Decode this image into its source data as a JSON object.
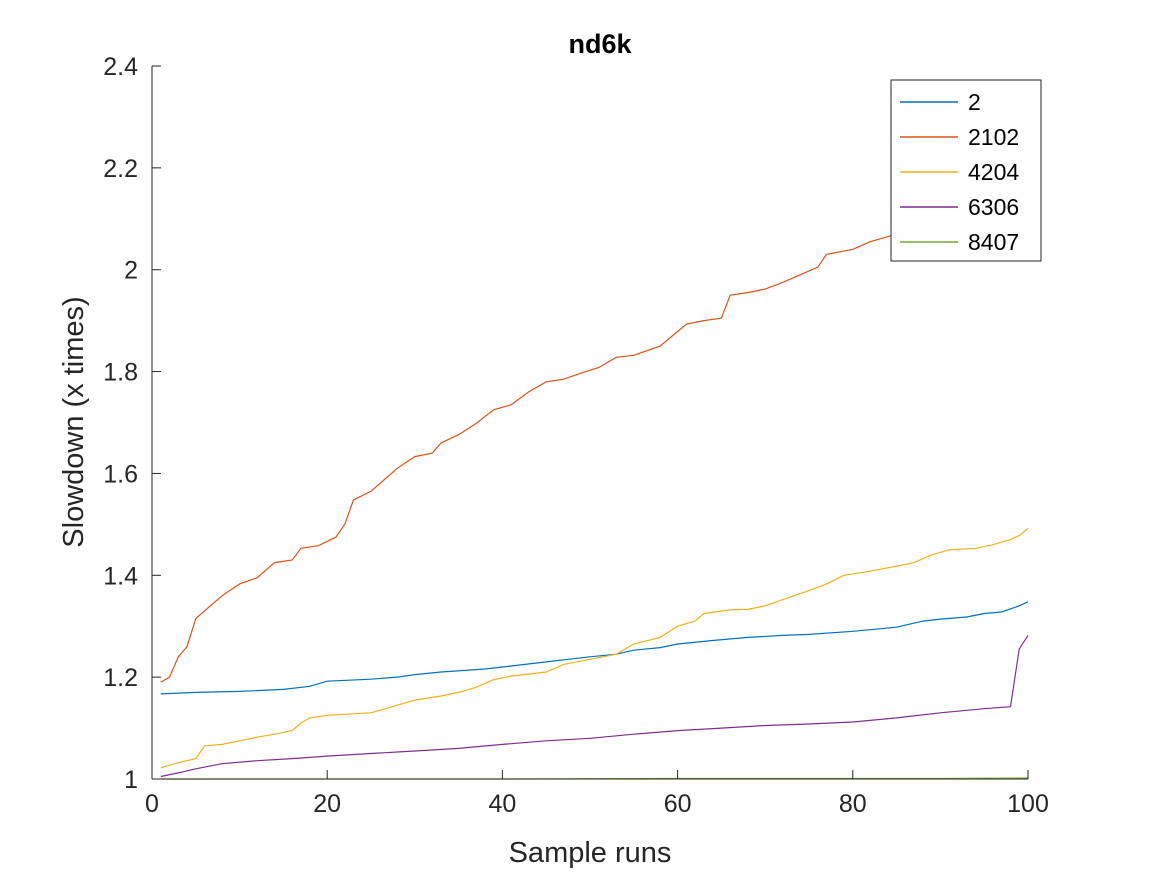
{
  "chart_data": {
    "type": "line",
    "title": "nd6k",
    "xlabel": "Sample runs",
    "ylabel": "Slowdown (x times)",
    "xlim": [
      0,
      100
    ],
    "ylim": [
      1,
      2.4
    ],
    "xticks": [
      0,
      20,
      40,
      60,
      80,
      100
    ],
    "yticks": [
      1,
      1.2,
      1.4,
      1.6,
      1.8,
      2,
      2.2,
      2.4
    ],
    "xtick_labels": [
      "0",
      "20",
      "40",
      "60",
      "80",
      "100"
    ],
    "ytick_labels": [
      "1",
      "1.2",
      "1.4",
      "1.6",
      "1.8",
      "2",
      "2.2",
      "2.4"
    ],
    "grid": false,
    "legend_position": "top-right",
    "series": [
      {
        "name": "2",
        "color": "#0072BD",
        "points": [
          [
            1,
            1.167
          ],
          [
            5,
            1.17
          ],
          [
            10,
            1.172
          ],
          [
            15,
            1.176
          ],
          [
            18,
            1.182
          ],
          [
            20,
            1.192
          ],
          [
            25,
            1.196
          ],
          [
            28,
            1.2
          ],
          [
            30,
            1.205
          ],
          [
            33,
            1.21
          ],
          [
            38,
            1.216
          ],
          [
            40,
            1.22
          ],
          [
            45,
            1.23
          ],
          [
            48,
            1.236
          ],
          [
            50,
            1.24
          ],
          [
            53,
            1.245
          ],
          [
            55,
            1.253
          ],
          [
            58,
            1.258
          ],
          [
            60,
            1.265
          ],
          [
            64,
            1.272
          ],
          [
            68,
            1.278
          ],
          [
            72,
            1.282
          ],
          [
            75,
            1.284
          ],
          [
            80,
            1.29
          ],
          [
            85,
            1.298
          ],
          [
            88,
            1.31
          ],
          [
            90,
            1.314
          ],
          [
            93,
            1.318
          ],
          [
            95,
            1.325
          ],
          [
            97,
            1.328
          ],
          [
            99,
            1.34
          ],
          [
            100,
            1.348
          ]
        ]
      },
      {
        "name": "2102",
        "color": "#D95319",
        "points": [
          [
            1,
            1.19
          ],
          [
            2,
            1.2
          ],
          [
            3,
            1.24
          ],
          [
            4,
            1.26
          ],
          [
            5,
            1.315
          ],
          [
            7,
            1.345
          ],
          [
            8,
            1.36
          ],
          [
            10,
            1.383
          ],
          [
            12,
            1.395
          ],
          [
            14,
            1.425
          ],
          [
            16,
            1.43
          ],
          [
            17,
            1.453
          ],
          [
            19,
            1.458
          ],
          [
            21,
            1.475
          ],
          [
            22,
            1.5
          ],
          [
            23,
            1.548
          ],
          [
            25,
            1.565
          ],
          [
            28,
            1.61
          ],
          [
            30,
            1.633
          ],
          [
            32,
            1.64
          ],
          [
            33,
            1.66
          ],
          [
            35,
            1.676
          ],
          [
            37,
            1.698
          ],
          [
            39,
            1.725
          ],
          [
            41,
            1.735
          ],
          [
            43,
            1.76
          ],
          [
            45,
            1.78
          ],
          [
            47,
            1.785
          ],
          [
            49,
            1.797
          ],
          [
            51,
            1.808
          ],
          [
            53,
            1.828
          ],
          [
            55,
            1.832
          ],
          [
            58,
            1.85
          ],
          [
            61,
            1.893
          ],
          [
            63,
            1.9
          ],
          [
            65,
            1.905
          ],
          [
            66,
            1.95
          ],
          [
            68,
            1.955
          ],
          [
            70,
            1.962
          ],
          [
            72,
            1.975
          ],
          [
            74,
            1.99
          ],
          [
            76,
            2.005
          ],
          [
            77,
            2.03
          ],
          [
            80,
            2.04
          ],
          [
            82,
            2.055
          ],
          [
            85,
            2.07
          ],
          [
            88,
            2.09
          ],
          [
            90,
            2.11
          ],
          [
            92,
            2.13
          ],
          [
            94,
            2.15
          ],
          [
            96,
            2.17
          ],
          [
            98,
            2.195
          ],
          [
            99,
            2.225
          ],
          [
            100,
            2.232
          ]
        ]
      },
      {
        "name": "4204",
        "color": "#EDB120",
        "points": [
          [
            1,
            1.022
          ],
          [
            3,
            1.032
          ],
          [
            5,
            1.04
          ],
          [
            6,
            1.065
          ],
          [
            8,
            1.068
          ],
          [
            10,
            1.075
          ],
          [
            12,
            1.082
          ],
          [
            14,
            1.088
          ],
          [
            16,
            1.095
          ],
          [
            17,
            1.11
          ],
          [
            18,
            1.12
          ],
          [
            20,
            1.125
          ],
          [
            25,
            1.13
          ],
          [
            28,
            1.145
          ],
          [
            30,
            1.155
          ],
          [
            33,
            1.163
          ],
          [
            35,
            1.17
          ],
          [
            37,
            1.18
          ],
          [
            39,
            1.195
          ],
          [
            41,
            1.202
          ],
          [
            45,
            1.21
          ],
          [
            47,
            1.225
          ],
          [
            50,
            1.235
          ],
          [
            53,
            1.245
          ],
          [
            55,
            1.265
          ],
          [
            58,
            1.278
          ],
          [
            60,
            1.3
          ],
          [
            62,
            1.31
          ],
          [
            63,
            1.325
          ],
          [
            66,
            1.332
          ],
          [
            68,
            1.333
          ],
          [
            70,
            1.34
          ],
          [
            72,
            1.352
          ],
          [
            75,
            1.37
          ],
          [
            77,
            1.383
          ],
          [
            79,
            1.4
          ],
          [
            82,
            1.408
          ],
          [
            85,
            1.418
          ],
          [
            87,
            1.425
          ],
          [
            89,
            1.44
          ],
          [
            91,
            1.45
          ],
          [
            94,
            1.453
          ],
          [
            96,
            1.46
          ],
          [
            98,
            1.47
          ],
          [
            99,
            1.478
          ],
          [
            100,
            1.492
          ]
        ]
      },
      {
        "name": "6306",
        "color": "#7E2F8E",
        "points": [
          [
            1,
            1.005
          ],
          [
            3,
            1.012
          ],
          [
            5,
            1.02
          ],
          [
            8,
            1.03
          ],
          [
            12,
            1.036
          ],
          [
            16,
            1.04
          ],
          [
            20,
            1.045
          ],
          [
            25,
            1.05
          ],
          [
            30,
            1.055
          ],
          [
            35,
            1.06
          ],
          [
            40,
            1.068
          ],
          [
            45,
            1.075
          ],
          [
            50,
            1.08
          ],
          [
            55,
            1.088
          ],
          [
            60,
            1.095
          ],
          [
            65,
            1.1
          ],
          [
            70,
            1.105
          ],
          [
            75,
            1.108
          ],
          [
            80,
            1.112
          ],
          [
            85,
            1.12
          ],
          [
            90,
            1.13
          ],
          [
            95,
            1.138
          ],
          [
            98,
            1.142
          ],
          [
            99,
            1.255
          ],
          [
            100,
            1.282
          ]
        ]
      },
      {
        "name": "8407",
        "color": "#77AC30",
        "points": [
          [
            1,
            1.0
          ],
          [
            20,
            1.0
          ],
          [
            40,
            1.0
          ],
          [
            60,
            1.001
          ],
          [
            70,
            1.001
          ],
          [
            80,
            1.001
          ],
          [
            90,
            1.001
          ],
          [
            100,
            1.002
          ]
        ]
      }
    ]
  }
}
